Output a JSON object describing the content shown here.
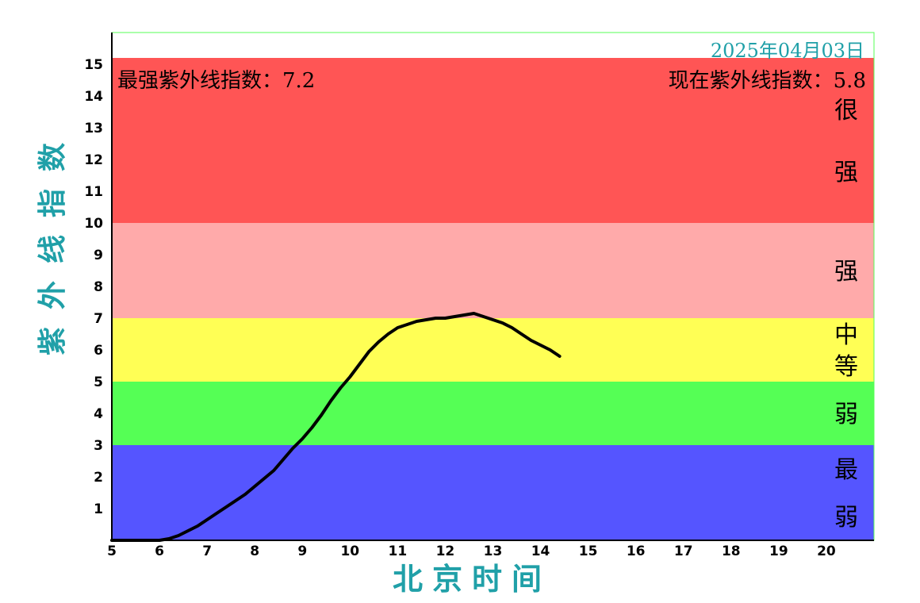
{
  "chart_data": {
    "type": "line",
    "date": "2025年04月03日",
    "max_label": "最强紫外线指数：7.2",
    "current_label": "现在紫外线指数：5.8",
    "ylabel": "紫外线指数",
    "xlabel": "北京时间",
    "xlim": [
      5,
      21
    ],
    "ylim": [
      0,
      16
    ],
    "x_ticks": [
      "5",
      "6",
      "7",
      "8",
      "9",
      "10",
      "11",
      "12",
      "13",
      "14",
      "15",
      "16",
      "17",
      "18",
      "19",
      "20"
    ],
    "y_ticks": [
      "1",
      "2",
      "3",
      "4",
      "5",
      "6",
      "7",
      "8",
      "9",
      "10",
      "11",
      "12",
      "13",
      "14",
      "15"
    ],
    "bands": [
      {
        "from": 0,
        "to": 3,
        "color": "#5555ff",
        "label": "最弱",
        "label_lines": [
          "最",
          "弱"
        ]
      },
      {
        "from": 3,
        "to": 5,
        "color": "#55ff55",
        "label": "弱",
        "label_lines": [
          "弱"
        ]
      },
      {
        "from": 5,
        "to": 7,
        "color": "#ffff55",
        "label": "中等",
        "label_lines": [
          "中",
          "等"
        ]
      },
      {
        "from": 7,
        "to": 10,
        "color": "#ffaaaa",
        "label": "强",
        "label_lines": [
          "强"
        ]
      },
      {
        "from": 10,
        "to": 15.2,
        "color": "#ff5555",
        "label": "很强",
        "label_lines": [
          "很",
          "强"
        ]
      }
    ],
    "series": [
      {
        "x": [
          5.0,
          5.5,
          6.0,
          6.2,
          6.4,
          6.6,
          6.8,
          7.0,
          7.2,
          7.4,
          7.6,
          7.8,
          8.0,
          8.2,
          8.4,
          8.6,
          8.8,
          9.0,
          9.2,
          9.4,
          9.6,
          9.8,
          10.0,
          10.2,
          10.4,
          10.6,
          10.8,
          11.0,
          11.2,
          11.4,
          11.6,
          11.8,
          12.0,
          12.2,
          12.4,
          12.6,
          12.8,
          13.0,
          13.2,
          13.4,
          13.6,
          13.8,
          14.0,
          14.2,
          14.4
        ],
        "y": [
          0.0,
          0.0,
          0.0,
          0.05,
          0.15,
          0.3,
          0.45,
          0.65,
          0.85,
          1.05,
          1.25,
          1.45,
          1.7,
          1.95,
          2.2,
          2.55,
          2.9,
          3.2,
          3.55,
          3.95,
          4.4,
          4.8,
          5.15,
          5.55,
          5.95,
          6.25,
          6.5,
          6.7,
          6.8,
          6.9,
          6.95,
          7.0,
          7.0,
          7.05,
          7.1,
          7.15,
          7.05,
          6.95,
          6.85,
          6.7,
          6.5,
          6.3,
          6.15,
          6.0,
          5.8
        ]
      }
    ],
    "line_color": "#000000",
    "border_color": "#55ff55"
  }
}
